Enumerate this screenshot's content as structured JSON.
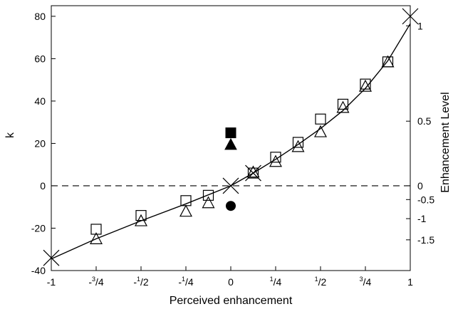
{
  "chart_data": {
    "type": "scatter",
    "xlabel": "Perceived enhancement",
    "ylabel": "k",
    "y2label": "Enhancement Level",
    "xlim": [
      -1,
      1
    ],
    "ylim": [
      -40,
      85
    ],
    "x_ticks": [
      {
        "value": -1,
        "label": "-1"
      },
      {
        "value": -0.75,
        "label": "-3/4",
        "sign": "-",
        "num": "3",
        "den": "4"
      },
      {
        "value": -0.5,
        "label": "-1/2",
        "sign": "-",
        "num": "1",
        "den": "2"
      },
      {
        "value": -0.25,
        "label": "-1/4",
        "sign": "-",
        "num": "1",
        "den": "4"
      },
      {
        "value": 0,
        "label": "0"
      },
      {
        "value": 0.25,
        "label": "1/4",
        "sign": "",
        "num": "1",
        "den": "4"
      },
      {
        "value": 0.5,
        "label": "1/2",
        "sign": "",
        "num": "1",
        "den": "2"
      },
      {
        "value": 0.75,
        "label": "3/4",
        "sign": "",
        "num": "3",
        "den": "4"
      },
      {
        "value": 1,
        "label": "1"
      }
    ],
    "y_ticks": [
      -40,
      -20,
      0,
      20,
      40,
      60,
      80
    ],
    "y2_ticks": [
      {
        "k": 75.5,
        "label": "1"
      },
      {
        "k": 30.5,
        "label": "0.5"
      },
      {
        "k": 0,
        "label": "0"
      },
      {
        "k": -6.5,
        "label": "-0.5"
      },
      {
        "k": -15.5,
        "label": "-1"
      },
      {
        "k": -25.5,
        "label": "-1.5"
      }
    ],
    "reference_line": {
      "k": 0,
      "style": "dashed"
    },
    "fitted_curve": {
      "x": [
        -1,
        -0.75,
        -0.5,
        -0.25,
        0,
        0.125,
        0.25,
        0.375,
        0.5,
        0.625,
        0.75,
        0.875,
        1
      ],
      "y": [
        -34.5,
        -25,
        -16.5,
        -8.5,
        0,
        6,
        12.5,
        19.5,
        27,
        35.5,
        46,
        59,
        76.5
      ]
    },
    "series": [
      {
        "marker": "open-square",
        "x": [
          -0.75,
          -0.5,
          -0.25,
          -0.125,
          0.125,
          0.25,
          0.375,
          0.5,
          0.625,
          0.75,
          0.875
        ],
        "y": [
          -20.5,
          -14,
          -7,
          -4.5,
          6,
          13.5,
          20.5,
          31.5,
          38.5,
          48,
          58.5
        ]
      },
      {
        "marker": "open-triangle",
        "x": [
          -0.75,
          -0.5,
          -0.25,
          -0.125,
          0.125,
          0.25,
          0.375,
          0.5,
          0.625,
          0.75,
          0.875
        ],
        "y": [
          -25,
          -16.5,
          -12,
          -8,
          6.5,
          11.5,
          18.5,
          25.5,
          37,
          47,
          58.5
        ]
      },
      {
        "marker": "x-cross",
        "x": [
          -1,
          0,
          0.125,
          1
        ],
        "y": [
          -34,
          0,
          6,
          80
        ]
      },
      {
        "marker": "filled-square",
        "x": [
          0
        ],
        "y": [
          25
        ]
      },
      {
        "marker": "filled-triangle",
        "x": [
          0
        ],
        "y": [
          19.5
        ]
      },
      {
        "marker": "filled-circle",
        "x": [
          0
        ],
        "y": [
          -9.5
        ]
      }
    ]
  }
}
